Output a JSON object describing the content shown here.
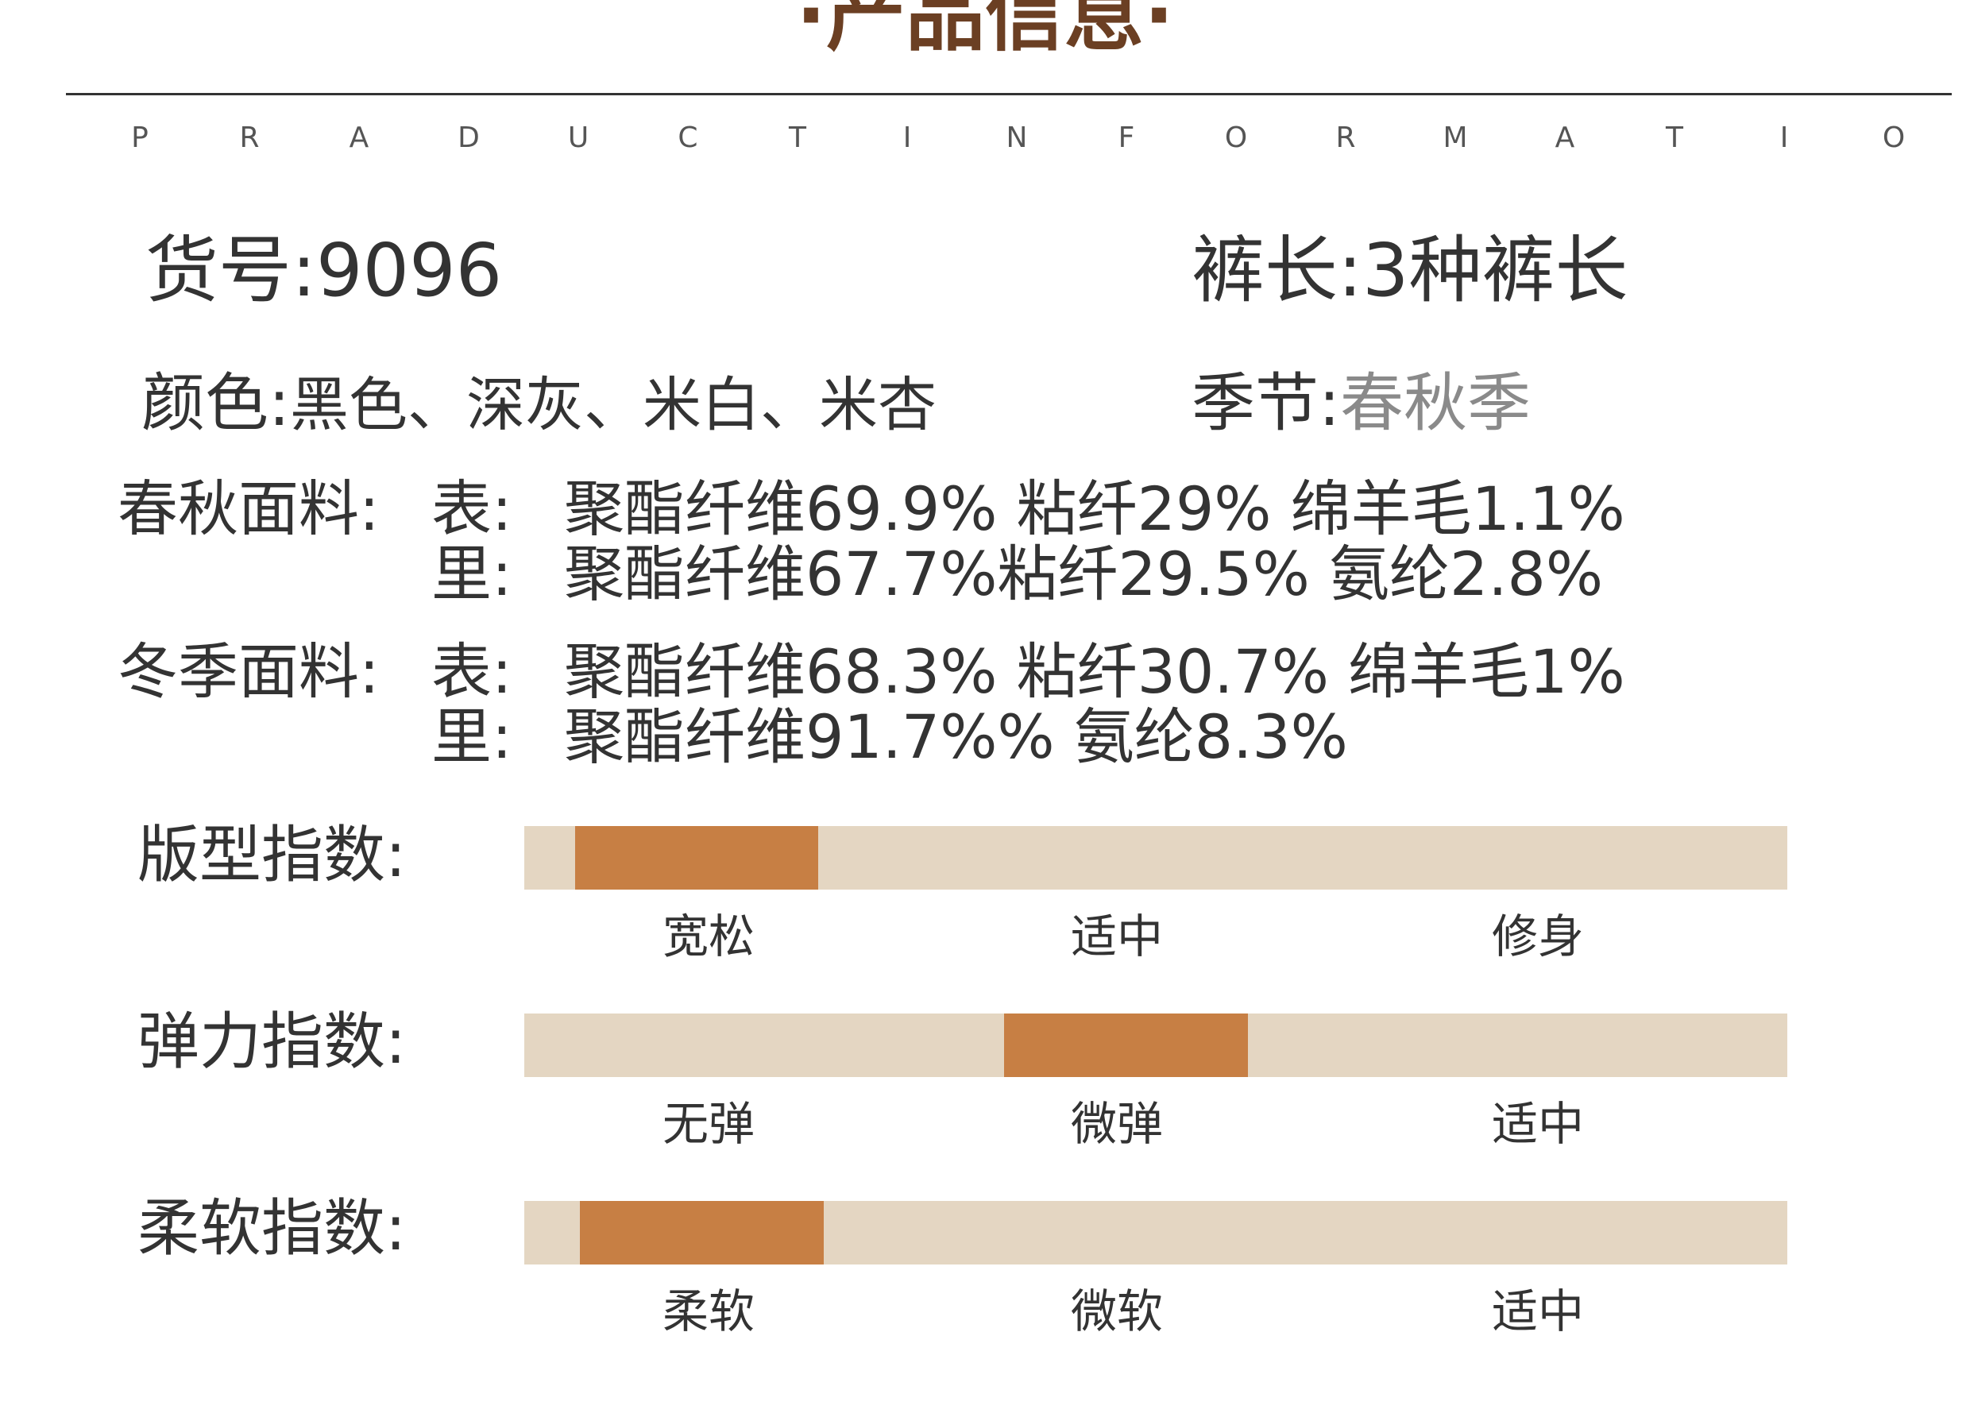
{
  "header": {
    "title": "·产品信息·",
    "letters": [
      "P",
      "R",
      "A",
      "D",
      "U",
      "C",
      "T",
      "I",
      "N",
      "F",
      "O",
      "R",
      "M",
      "A",
      "T",
      "I",
      "O"
    ]
  },
  "info": {
    "item_no": {
      "label": "货号:",
      "value": "9096"
    },
    "pants_length": {
      "label": "裤长:",
      "value": "3种裤长"
    },
    "colors": {
      "label": "颜色:",
      "value": "黑色、深灰、米白、米杏"
    },
    "season": {
      "label": "季节:",
      "value": "春秋季"
    }
  },
  "fabrics": {
    "spring_autumn": {
      "label": "春秋面料:",
      "outer_label": "表:",
      "outer_value": "聚酯纤维69.9% 粘纤29% 绵羊毛1.1%",
      "inner_label": "里:",
      "inner_value": "聚酯纤维67.7%粘纤29.5% 氨纶2.8%"
    },
    "winter": {
      "label": "冬季面料:",
      "outer_label": "表:",
      "outer_value": "聚酯纤维68.3% 粘纤30.7% 绵羊毛1%",
      "inner_label": "里:",
      "inner_value": "聚酯纤维91.7%% 氨纶8.3%"
    }
  },
  "indices": [
    {
      "label": "版型指数:",
      "ticks": [
        "宽松",
        "适中",
        "修身"
      ],
      "selected": "宽松",
      "level_start": 0.04,
      "level_end": 0.233
    },
    {
      "label": "弹力指数:",
      "ticks": [
        "无弹",
        "微弹",
        "适中"
      ],
      "selected": "微弹",
      "level_start": 0.38,
      "level_end": 0.573
    },
    {
      "label": "柔软指数:",
      "ticks": [
        "柔软",
        "微软",
        "适中"
      ],
      "selected": "柔软",
      "level_start": 0.044,
      "level_end": 0.237
    }
  ],
  "colors": {
    "title": "#6b3f23",
    "track": "#e4d6c2",
    "fill": "#c77f44",
    "text": "#333333",
    "text_muted": "#8a8a8a"
  }
}
